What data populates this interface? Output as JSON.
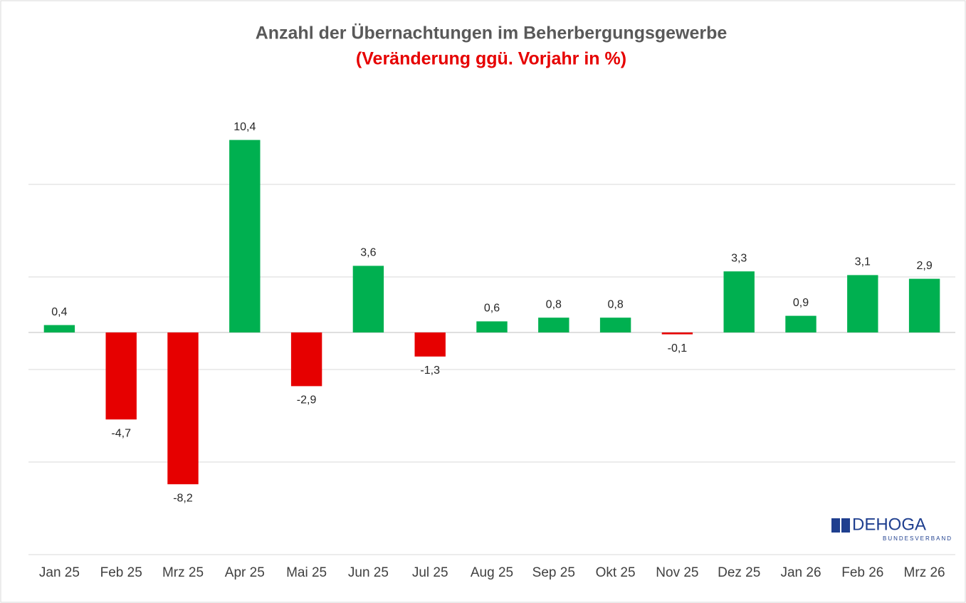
{
  "chart_data": {
    "type": "bar",
    "title": "Anzahl der Übernachtungen im Beherbergungsgewerbe",
    "subtitle": "(Veränderung ggü. Vorjahr in %)",
    "categories": [
      "Jan 25",
      "Feb 25",
      "Mrz 25",
      "Apr 25",
      "Mai 25",
      "Jun 25",
      "Jul 25",
      "Aug 25",
      "Sep 25",
      "Okt 25",
      "Nov 25",
      "Dez 25",
      "Jan 26",
      "Feb 26",
      "Mrz 26"
    ],
    "values": [
      0.4,
      -4.7,
      -8.2,
      10.4,
      -2.9,
      3.6,
      -1.3,
      0.6,
      0.8,
      0.8,
      -0.1,
      3.3,
      0.9,
      3.1,
      2.9
    ],
    "value_labels": [
      "0,4",
      "-4,7",
      "-8,2",
      "10,4",
      "-2,9",
      "3,6",
      "-1,3",
      "0,6",
      "0,8",
      "0,8",
      "-0,1",
      "3,3",
      "0,9",
      "3,1",
      "2,9"
    ],
    "colors": [
      "#00b050",
      "#e60000",
      "#e60000",
      "#00b050",
      "#e60000",
      "#00b050",
      "#e60000",
      "#00b050",
      "#00b050",
      "#00b050",
      "#e60000",
      "#00b050",
      "#00b050",
      "#00b050",
      "#00b050"
    ],
    "ylim": [
      -12,
      13
    ],
    "yticks": [
      -12,
      -7,
      -2,
      3,
      8
    ],
    "grid": true
  },
  "logo": {
    "name": "DEHOGA",
    "tagline": "BUNDESVERBAND"
  }
}
